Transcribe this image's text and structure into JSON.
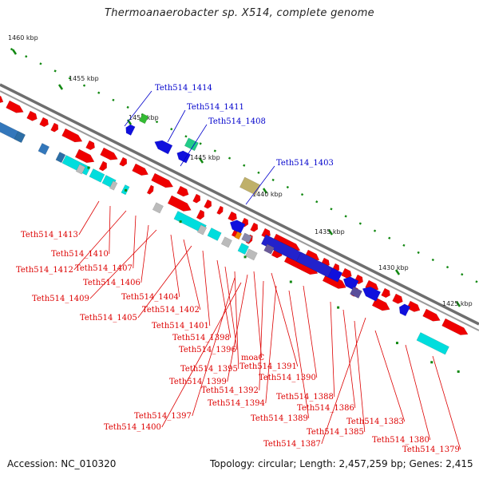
{
  "title": "Thermoanaerobacter sp. X514, complete genome",
  "accession": "Accession: NC_010320",
  "summary": "Topology: circular; Length: 2,457,259 bp; Genes: 2,415",
  "colors": {
    "forward_gene": "#ee0000",
    "reverse_gene": "#1010dd",
    "cds_forward": "#00dddd",
    "cds_reverse": "#3377bb",
    "backbone": "#888888",
    "tick": "#118811",
    "label_top": "#0000cc",
    "label_bottom": "#dd0000"
  },
  "kbp_ticks": [
    "1460 kbp",
    "1455 kbp",
    "1450 kbp",
    "1445 kbp",
    "1440 kbp",
    "1435 kbp",
    "1430 kbp",
    "1425 kbp"
  ],
  "top_labels": [
    "Teth514_1414",
    "Teth514_1411",
    "Teth514_1408",
    "Teth514_1403"
  ],
  "bottom_labels": [
    "Teth514_1413",
    "Teth514_1410",
    "Teth514_1412",
    "Teth514_1407",
    "Teth514_1406",
    "Teth514_1409",
    "Teth514_1404",
    "Teth514_1402",
    "Teth514_1405",
    "Teth514_1401",
    "Teth514_1398",
    "Teth514_1396",
    "moaC",
    "Teth514_1391",
    "Teth514_1395",
    "Teth514_1399",
    "Teth514_1390",
    "Teth514_1392",
    "Teth514_1394",
    "Teth514_1388",
    "Teth514_1389",
    "Teth514_1386",
    "Teth514_1397",
    "Teth514_1400",
    "Teth514_1385",
    "Teth514_1383",
    "Teth514_1387",
    "Teth514_1380",
    "Teth514_1379"
  ]
}
